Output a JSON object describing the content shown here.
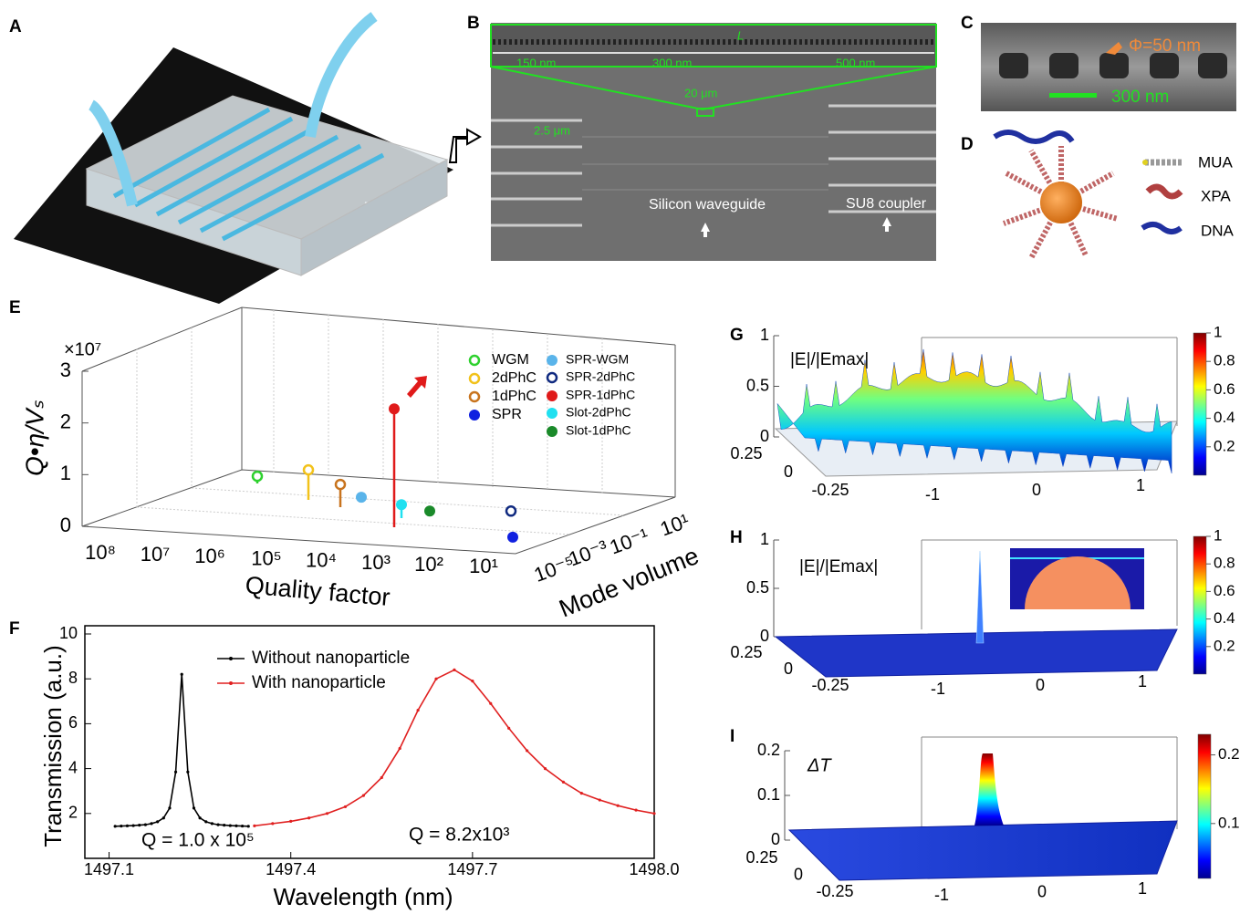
{
  "panels": {
    "A": {
      "label": "A"
    },
    "B": {
      "label": "B",
      "annotations": [
        "150 nm",
        "300 nm",
        "500 nm",
        "L",
        "20 μm",
        "2.5 μm",
        "Silicon waveguide",
        "SU8 coupler"
      ]
    },
    "C": {
      "label": "C",
      "annotations": [
        "Φ=50 nm",
        "300 nm"
      ]
    },
    "D": {
      "label": "D",
      "legend": [
        "MUA",
        "XPA",
        "DNA"
      ]
    },
    "E": {
      "label": "E"
    },
    "F": {
      "label": "F"
    },
    "G": {
      "label": "G",
      "title": "|E|/|Emax|",
      "zticks": [
        0,
        0.5,
        1
      ],
      "yticks": [
        0.25,
        0,
        -0.25
      ],
      "xticks": [
        -1,
        0,
        1
      ],
      "colorbar_lim": [
        0,
        1
      ],
      "colorbar_ticks": [
        0.2,
        0.4,
        0.6,
        0.8,
        1
      ]
    },
    "H": {
      "label": "H",
      "title": "|E|/|Emax|",
      "zticks": [
        0,
        0.5,
        1
      ],
      "yticks": [
        0.25,
        0,
        -0.25
      ],
      "xticks": [
        -1,
        0,
        1
      ],
      "colorbar_lim": [
        0,
        1
      ],
      "colorbar_ticks": [
        0.2,
        0.4,
        0.6,
        0.8,
        1
      ]
    },
    "I": {
      "label": "I",
      "title": "ΔT",
      "zticks": [
        0,
        0.1,
        0.2
      ],
      "yticks": [
        0.25,
        0,
        -0.25
      ],
      "xticks": [
        -1,
        0,
        1
      ],
      "colorbar_lim": [
        0.02,
        0.23
      ],
      "colorbar_ticks": [
        0.1,
        0.2
      ]
    }
  },
  "chart_data": [
    {
      "type": "stem3d",
      "y_label": "Q•η/Vₛ",
      "y_multiplier": "×10⁷",
      "x_label": "Quality factor",
      "z_label": "Mode volume",
      "ylim": [
        0,
        3
      ],
      "yticks": [
        0,
        1,
        2,
        3
      ],
      "x_tick_labels": [
        "10⁸",
        "10⁷",
        "10⁶",
        "10⁵",
        "10⁴",
        "10³",
        "10²",
        "10¹"
      ],
      "z_tick_labels": [
        "10⁻⁵",
        "10⁻³",
        "10⁻¹",
        "10¹"
      ],
      "series": [
        {
          "name": "WGM",
          "color": "#2ed12e",
          "marker": "open",
          "values": [
            0.14
          ]
        },
        {
          "name": "2dPhC",
          "color": "#f2c21b",
          "marker": "open",
          "values": [
            0.58
          ]
        },
        {
          "name": "1dPhC",
          "color": "#c8741e",
          "marker": "open",
          "values": [
            0.44
          ]
        },
        {
          "name": "SPR-WGM",
          "color": "#5ab4ea",
          "marker": "filled",
          "values": [
            0.05
          ]
        },
        {
          "name": "Slot-2dPhC",
          "color": "#20e0f0",
          "marker": "filled",
          "values": [
            0.26
          ]
        },
        {
          "name": "SPR-1dPhC",
          "color": "#e01a1a",
          "marker": "filled",
          "values": [
            2.29
          ]
        },
        {
          "name": "Slot-1dPhC",
          "color": "#1a8a2a",
          "marker": "filled",
          "values": [
            0.03
          ]
        },
        {
          "name": "SPR-2dPhC",
          "color": "#102a80",
          "marker": "open",
          "values": [
            0.03
          ]
        },
        {
          "name": "SPR",
          "color": "#1020e0",
          "marker": "filled",
          "values": [
            0.02
          ]
        }
      ]
    },
    {
      "type": "line",
      "x_label": "Wavelength (nm)",
      "y_label": "Transmission (a.u.)",
      "xlim": [
        1497.06,
        1498.0
      ],
      "xticks": [
        1497.1,
        1497.4,
        1497.7,
        {
          "value": 1498,
          "label": "1498.0"
        }
      ],
      "ylim": [
        0,
        10
      ],
      "yticks": [
        2,
        4,
        6,
        8,
        10
      ],
      "annotations": [
        "Q = 1.0 x 10⁵",
        "Q = 8.2x10³"
      ],
      "series": [
        {
          "name": "Without nanoparticle",
          "color": "#000000",
          "x": [
            1497.11,
            1497.12,
            1497.13,
            1497.14,
            1497.15,
            1497.16,
            1497.17,
            1497.18,
            1497.19,
            1497.2,
            1497.21,
            1497.22,
            1497.23,
            1497.24,
            1497.25,
            1497.26,
            1497.27,
            1497.28,
            1497.29,
            1497.3,
            1497.31,
            1497.32,
            1497.33
          ],
          "values": [
            1.43,
            1.44,
            1.45,
            1.46,
            1.48,
            1.5,
            1.55,
            1.63,
            1.8,
            2.24,
            3.85,
            8.2,
            3.85,
            2.24,
            1.8,
            1.63,
            1.55,
            1.5,
            1.48,
            1.46,
            1.45,
            1.44,
            1.43
          ]
        },
        {
          "name": "With nanoparticle",
          "color": "#e02020",
          "x": [
            1497.34,
            1497.37,
            1497.4,
            1497.43,
            1497.46,
            1497.49,
            1497.52,
            1497.55,
            1497.58,
            1497.61,
            1497.64,
            1497.67,
            1497.7,
            1497.73,
            1497.76,
            1497.79,
            1497.82,
            1497.85,
            1497.88,
            1497.91,
            1497.94,
            1497.97,
            1498.0
          ],
          "values": [
            1.45,
            1.55,
            1.65,
            1.8,
            2.0,
            2.3,
            2.8,
            3.6,
            4.9,
            6.6,
            8.0,
            8.4,
            7.9,
            6.9,
            5.8,
            4.8,
            4.0,
            3.4,
            2.9,
            2.6,
            2.35,
            2.15,
            2.0
          ]
        }
      ]
    }
  ]
}
